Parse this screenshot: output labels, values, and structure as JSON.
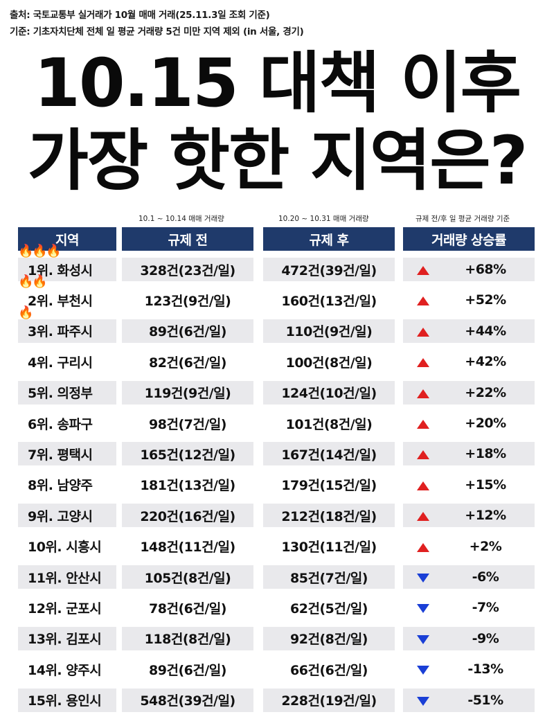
{
  "meta": {
    "source": "출처: 국토교통부 실거래가 10월 매매 거래(25.11.3일 조회 기준)",
    "criteria": "기준: 기초자치단체 전체 일 평균 거래량 5건 미만 지역 제외 (in 서울, 경기)"
  },
  "title": {
    "line1": "10.15 대책 이후",
    "line2": "가장 핫한 지역은?"
  },
  "subheaders": {
    "before_period": "10.1 ~ 10.14 매매 거래량",
    "after_period": "10.20 ~ 10.31 매매 거래량",
    "rate_basis": "규제 전/후 일 평균 거래량 기준"
  },
  "headers": {
    "region": "지역",
    "before": "규제 전",
    "after": "규제 후",
    "rate": "거래량 상승률"
  },
  "colors": {
    "header_bg": "#1f3a6b",
    "up": "#e02020",
    "down": "#1a3fd6",
    "row_shade": "#e9e9ec"
  },
  "rows": [
    {
      "rank": "1위. 화성시",
      "before": "328건(23건/일)",
      "after": "472건(39건/일)",
      "dir": "up",
      "rate": "+68%",
      "fire": 3
    },
    {
      "rank": "2위. 부천시",
      "before": "123건(9건/일)",
      "after": "160건(13건/일)",
      "dir": "up",
      "rate": "+52%",
      "fire": 2
    },
    {
      "rank": "3위. 파주시",
      "before": "89건(6건/일)",
      "after": "110건(9건/일)",
      "dir": "up",
      "rate": "+44%",
      "fire": 1
    },
    {
      "rank": "4위. 구리시",
      "before": "82건(6건/일)",
      "after": "100건(8건/일)",
      "dir": "up",
      "rate": "+42%",
      "fire": 0
    },
    {
      "rank": "5위. 의정부",
      "before": "119건(9건/일)",
      "after": "124건(10건/일)",
      "dir": "up",
      "rate": "+22%",
      "fire": 0
    },
    {
      "rank": "6위. 송파구",
      "before": "98건(7건/일)",
      "after": "101건(8건/일)",
      "dir": "up",
      "rate": "+20%",
      "fire": 0
    },
    {
      "rank": "7위. 평택시",
      "before": "165건(12건/일)",
      "after": "167건(14건/일)",
      "dir": "up",
      "rate": "+18%",
      "fire": 0
    },
    {
      "rank": "8위. 남양주",
      "before": "181건(13건/일)",
      "after": "179건(15건/일)",
      "dir": "up",
      "rate": "+15%",
      "fire": 0
    },
    {
      "rank": "9위. 고양시",
      "before": "220건(16건/일)",
      "after": "212건(18건/일)",
      "dir": "up",
      "rate": "+12%",
      "fire": 0
    },
    {
      "rank": "10위. 시흥시",
      "before": "148건(11건/일)",
      "after": "130건(11건/일)",
      "dir": "up",
      "rate": "+2%",
      "fire": 0
    },
    {
      "rank": "11위. 안산시",
      "before": "105건(8건/일)",
      "after": "85건(7건/일)",
      "dir": "down",
      "rate": "-6%",
      "fire": 0
    },
    {
      "rank": "12위. 군포시",
      "before": "78건(6건/일)",
      "after": "62건(5건/일)",
      "dir": "down",
      "rate": "-7%",
      "fire": 0
    },
    {
      "rank": "13위. 김포시",
      "before": "118건(8건/일)",
      "after": "92건(8건/일)",
      "dir": "down",
      "rate": "-9%",
      "fire": 0
    },
    {
      "rank": "14위. 양주시",
      "before": "89건(6건/일)",
      "after": "66건(6건/일)",
      "dir": "down",
      "rate": "-13%",
      "fire": 0
    },
    {
      "rank": "15위. 용인시",
      "before": "548건(39건/일)",
      "after": "228건(19건/일)",
      "dir": "down",
      "rate": "-51%",
      "fire": 0
    }
  ]
}
